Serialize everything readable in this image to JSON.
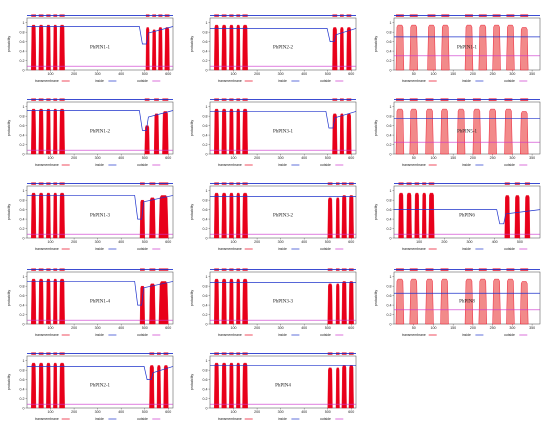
{
  "legend_labels": {
    "tm": "transmembrane",
    "inside": "inside",
    "outside": "outside"
  },
  "colors": {
    "tm": "#e8001a",
    "tm_light": "#f28a8a",
    "inside": "#1f33cc",
    "outside": "#cc33cc"
  },
  "chart_data": [
    {
      "type": "area",
      "title": "PhPIN1-1",
      "ylabel": "probability",
      "xlim": [
        0,
        620
      ],
      "xticks": [
        100,
        200,
        300,
        400,
        500,
        600
      ],
      "yticks": [
        0,
        0.2,
        0.4,
        0.6,
        0.8,
        1
      ],
      "series": [
        {
          "name": "transmembrane",
          "x": [
            18,
            38,
            50,
            70,
            82,
            100,
            112,
            128,
            138,
            160,
            505,
            520,
            532,
            548,
            558,
            575,
            585,
            605
          ],
          "values": [
            0.95,
            0.95,
            0.95,
            0.95,
            0.95,
            0.95,
            0.95,
            0.95,
            0.95,
            0.95,
            0.9,
            0.9,
            0.85,
            0.85,
            0.9,
            0.9,
            0.9,
            0.9
          ]
        },
        {
          "name": "inside",
          "level": 0.92,
          "dip_x": 490,
          "dip_to": 0.55
        },
        {
          "name": "outside",
          "level": 0.08
        }
      ]
    },
    {
      "type": "area",
      "title": "PhPIN2-2",
      "ylabel": "probability",
      "xlim": [
        0,
        620
      ],
      "xticks": [
        100,
        200,
        300,
        400,
        500,
        600
      ],
      "yticks": [
        0,
        0.2,
        0.4,
        0.6,
        0.8,
        1
      ],
      "series": [
        {
          "name": "transmembrane",
          "x": [
            18,
            38,
            50,
            70,
            82,
            100,
            112,
            128,
            138,
            160,
            520,
            540,
            552,
            568,
            580,
            600
          ],
          "values": [
            0.95,
            0.95,
            0.95,
            0.95,
            0.95,
            0.95,
            0.95,
            0.95,
            0.95,
            0.95,
            0.9,
            0.9,
            0.9,
            0.9,
            0.9,
            0.9
          ]
        },
        {
          "name": "inside",
          "level": 0.88,
          "dip_x": 510,
          "dip_to": 0.6
        },
        {
          "name": "outside",
          "level": 0.08
        }
      ]
    },
    {
      "type": "area",
      "title": "PhPIN1-1",
      "ylabel": "probability",
      "xlim": [
        0,
        370
      ],
      "xticks": [
        50,
        100,
        150,
        200,
        250,
        300,
        350
      ],
      "yticks": [
        0,
        0.2,
        0.4,
        0.6,
        0.8,
        1
      ],
      "series": [
        {
          "name": "transmembrane",
          "x": [
            5,
            25,
            40,
            60,
            85,
            105,
            120,
            140,
            180,
            200,
            215,
            235,
            250,
            270,
            285,
            305,
            320,
            340
          ],
          "values": [
            0.95,
            0.95,
            0.95,
            0.95,
            0.95,
            0.95,
            0.95,
            0.95,
            0.95,
            0.95,
            0.95,
            0.95,
            0.95,
            0.95,
            0.95,
            0.95,
            0.9,
            0.9
          ]
        },
        {
          "name": "inside",
          "level": 0.7
        },
        {
          "name": "outside",
          "level": 0.3
        }
      ]
    },
    {
      "type": "area",
      "title": "PhPIN1-2",
      "ylabel": "probability",
      "xlim": [
        0,
        620
      ],
      "xticks": [
        100,
        200,
        300,
        400,
        500,
        600
      ],
      "yticks": [
        0,
        0.2,
        0.4,
        0.6,
        0.8,
        1
      ],
      "series": [
        {
          "name": "transmembrane",
          "x": [
            18,
            38,
            50,
            70,
            82,
            100,
            112,
            128,
            138,
            160,
            500,
            520,
            540,
            560,
            575,
            600
          ],
          "values": [
            0.95,
            0.95,
            0.95,
            0.95,
            0.95,
            0.95,
            0.95,
            0.95,
            0.95,
            0.95,
            0.6,
            0.6,
            0.85,
            0.85,
            0.9,
            0.9
          ]
        },
        {
          "name": "inside",
          "level": 0.92,
          "dip_x": 490,
          "dip_to": 0.5
        },
        {
          "name": "outside",
          "level": 0.08
        }
      ]
    },
    {
      "type": "area",
      "title": "PhPIN3-1",
      "ylabel": "probability",
      "xlim": [
        0,
        620
      ],
      "xticks": [
        100,
        200,
        300,
        400,
        500,
        600
      ],
      "yticks": [
        0,
        0.2,
        0.4,
        0.6,
        0.8,
        1
      ],
      "series": [
        {
          "name": "transmembrane",
          "x": [
            18,
            38,
            50,
            70,
            82,
            100,
            112,
            128,
            138,
            160,
            520,
            540,
            552,
            568,
            580,
            600
          ],
          "values": [
            0.95,
            0.95,
            0.95,
            0.95,
            0.95,
            0.95,
            0.95,
            0.95,
            0.95,
            0.95,
            0.85,
            0.85,
            0.85,
            0.85,
            0.85,
            0.85
          ]
        },
        {
          "name": "inside",
          "level": 0.9,
          "dip_x": 505,
          "dip_to": 0.55
        },
        {
          "name": "outside",
          "level": 0.08
        }
      ]
    },
    {
      "type": "area",
      "title": "PhPIN5-1",
      "ylabel": "probability",
      "xlim": [
        0,
        370
      ],
      "xticks": [
        50,
        100,
        150,
        200,
        250,
        300,
        350
      ],
      "yticks": [
        0,
        0.2,
        0.4,
        0.6,
        0.8,
        1
      ],
      "series": [
        {
          "name": "transmembrane",
          "x": [
            5,
            25,
            40,
            60,
            80,
            100,
            118,
            138,
            160,
            180,
            200,
            220,
            240,
            260,
            280,
            300,
            320,
            340
          ],
          "values": [
            0.95,
            0.95,
            0.95,
            0.95,
            0.95,
            0.95,
            0.95,
            0.95,
            0.95,
            0.95,
            0.95,
            0.95,
            0.95,
            0.95,
            0.95,
            0.95,
            0.9,
            0.9
          ]
        },
        {
          "name": "inside",
          "level": 0.75
        },
        {
          "name": "outside",
          "level": 0.25
        }
      ]
    },
    {
      "type": "area",
      "title": "PhPIN1-3",
      "ylabel": "probability",
      "xlim": [
        0,
        620
      ],
      "xticks": [
        100,
        200,
        300,
        400,
        500,
        600
      ],
      "yticks": [
        0,
        0.2,
        0.4,
        0.6,
        0.8,
        1
      ],
      "series": [
        {
          "name": "transmembrane",
          "x": [
            18,
            38,
            50,
            70,
            82,
            100,
            112,
            128,
            138,
            160,
            480,
            500,
            520,
            545,
            560,
            600
          ],
          "values": [
            0.95,
            0.95,
            0.95,
            0.95,
            0.95,
            0.95,
            0.95,
            0.95,
            0.95,
            0.95,
            0.8,
            0.8,
            0.85,
            0.85,
            0.9,
            0.9
          ]
        },
        {
          "name": "inside",
          "level": 0.9,
          "dip_x": 470,
          "dip_to": 0.4
        },
        {
          "name": "outside",
          "level": 0.08
        }
      ]
    },
    {
      "type": "area",
      "title": "PhPIN3-2",
      "ylabel": "probability",
      "xlim": [
        0,
        620
      ],
      "xticks": [
        100,
        200,
        300,
        400,
        500,
        600
      ],
      "yticks": [
        0,
        0.2,
        0.4,
        0.6,
        0.8,
        1
      ],
      "series": [
        {
          "name": "transmembrane",
          "x": [
            18,
            38,
            50,
            70,
            82,
            100,
            112,
            128,
            138,
            160,
            500,
            520,
            535,
            550,
            560,
            580,
            590,
            610
          ],
          "values": [
            0.95,
            0.95,
            0.95,
            0.95,
            0.95,
            0.95,
            0.95,
            0.95,
            0.95,
            0.95,
            0.85,
            0.85,
            0.85,
            0.85,
            0.9,
            0.9,
            0.9,
            0.9
          ]
        },
        {
          "name": "inside",
          "level": 0.88
        },
        {
          "name": "outside",
          "level": 0.08
        }
      ]
    },
    {
      "type": "area",
      "title": "PhPIN6",
      "ylabel": "probability",
      "xlim": [
        0,
        580
      ],
      "xticks": [
        100,
        200,
        300,
        400,
        500
      ],
      "yticks": [
        0,
        0.2,
        0.4,
        0.6,
        0.8,
        1
      ],
      "series": [
        {
          "name": "transmembrane",
          "x": [
            18,
            38,
            50,
            70,
            82,
            100,
            112,
            128,
            138,
            160,
            440,
            460,
            480,
            500,
            520,
            540
          ],
          "values": [
            0.95,
            0.95,
            0.95,
            0.95,
            0.95,
            0.95,
            0.95,
            0.95,
            0.95,
            0.95,
            0.9,
            0.9,
            0.9,
            0.9,
            0.9,
            0.9
          ]
        },
        {
          "name": "inside",
          "level": 0.6,
          "dip_x": 420,
          "dip_to": 0.3
        },
        {
          "name": "outside",
          "level": 0.08
        }
      ]
    },
    {
      "type": "area",
      "title": "PhPIN1-4",
      "ylabel": "probability",
      "xlim": [
        0,
        620
      ],
      "xticks": [
        100,
        200,
        300,
        400,
        500,
        600
      ],
      "yticks": [
        0,
        0.2,
        0.4,
        0.6,
        0.8,
        1
      ],
      "series": [
        {
          "name": "transmembrane",
          "x": [
            18,
            38,
            50,
            70,
            82,
            100,
            112,
            128,
            138,
            160,
            480,
            500,
            520,
            545,
            560,
            600
          ],
          "values": [
            0.95,
            0.95,
            0.95,
            0.95,
            0.95,
            0.95,
            0.95,
            0.95,
            0.95,
            0.95,
            0.8,
            0.8,
            0.85,
            0.85,
            0.9,
            0.9
          ]
        },
        {
          "name": "inside",
          "level": 0.9,
          "dip_x": 470,
          "dip_to": 0.4
        },
        {
          "name": "outside",
          "level": 0.08
        }
      ]
    },
    {
      "type": "area",
      "title": "PhPIN3-3",
      "ylabel": "probability",
      "xlim": [
        0,
        620
      ],
      "xticks": [
        100,
        200,
        300,
        400,
        500,
        600
      ],
      "yticks": [
        0,
        0.2,
        0.4,
        0.6,
        0.8,
        1
      ],
      "series": [
        {
          "name": "transmembrane",
          "x": [
            18,
            38,
            50,
            70,
            82,
            100,
            112,
            128,
            138,
            160,
            500,
            520,
            535,
            550,
            560,
            580,
            590,
            610
          ],
          "values": [
            0.95,
            0.95,
            0.95,
            0.95,
            0.95,
            0.95,
            0.95,
            0.95,
            0.95,
            0.95,
            0.85,
            0.85,
            0.85,
            0.85,
            0.9,
            0.9,
            0.9,
            0.9
          ]
        },
        {
          "name": "inside",
          "level": 0.88
        },
        {
          "name": "outside",
          "level": 0.08
        }
      ]
    },
    {
      "type": "area",
      "title": "PhPIN8",
      "ylabel": "probability",
      "xlim": [
        0,
        370
      ],
      "xticks": [
        50,
        100,
        150,
        200,
        250,
        300,
        350
      ],
      "yticks": [
        0,
        0.2,
        0.4,
        0.6,
        0.8,
        1
      ],
      "series": [
        {
          "name": "transmembrane",
          "x": [
            5,
            25,
            40,
            60,
            80,
            100,
            118,
            138,
            180,
            200,
            215,
            235,
            250,
            270,
            285,
            305,
            320,
            340
          ],
          "values": [
            0.95,
            0.95,
            0.95,
            0.95,
            0.95,
            0.95,
            0.95,
            0.95,
            0.95,
            0.95,
            0.95,
            0.95,
            0.95,
            0.95,
            0.95,
            0.95,
            0.9,
            0.9
          ]
        },
        {
          "name": "inside",
          "level": 0.65
        },
        {
          "name": "outside",
          "level": 0.3
        }
      ]
    },
    {
      "type": "area",
      "title": "PhPIN2-1",
      "ylabel": "probability",
      "xlim": [
        0,
        620
      ],
      "xticks": [
        100,
        200,
        300,
        400,
        500,
        600
      ],
      "yticks": [
        0,
        0.2,
        0.4,
        0.6,
        0.8,
        1
      ],
      "series": [
        {
          "name": "transmembrane",
          "x": [
            18,
            38,
            50,
            70,
            82,
            100,
            112,
            128,
            138,
            160,
            520,
            540,
            552,
            568,
            580,
            600
          ],
          "values": [
            0.95,
            0.95,
            0.95,
            0.95,
            0.95,
            0.95,
            0.95,
            0.95,
            0.95,
            0.95,
            0.9,
            0.9,
            0.9,
            0.9,
            0.9,
            0.9
          ]
        },
        {
          "name": "inside",
          "level": 0.88,
          "dip_x": 510,
          "dip_to": 0.6
        },
        {
          "name": "outside",
          "level": 0.08
        }
      ]
    },
    {
      "type": "area",
      "title": "PhPIN4",
      "ylabel": "probability",
      "xlim": [
        0,
        620
      ],
      "xticks": [
        100,
        200,
        300,
        400,
        500,
        600
      ],
      "yticks": [
        0,
        0.2,
        0.4,
        0.6,
        0.8,
        1
      ],
      "series": [
        {
          "name": "transmembrane",
          "x": [
            18,
            38,
            50,
            70,
            82,
            100,
            112,
            128,
            138,
            160,
            500,
            520,
            535,
            550,
            560,
            580,
            590,
            610
          ],
          "values": [
            0.95,
            0.95,
            0.95,
            0.95,
            0.95,
            0.95,
            0.95,
            0.95,
            0.95,
            0.95,
            0.85,
            0.85,
            0.85,
            0.85,
            0.9,
            0.9,
            0.9,
            0.9
          ]
        },
        {
          "name": "inside",
          "level": 0.9
        },
        {
          "name": "outside",
          "level": 0.08
        }
      ]
    }
  ]
}
